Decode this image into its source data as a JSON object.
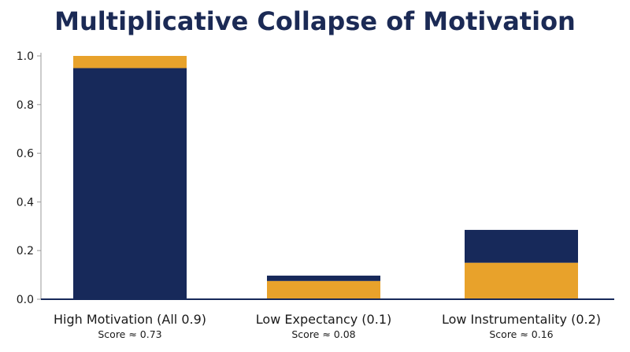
{
  "chart_data": {
    "type": "bar",
    "stacked": true,
    "title": "Multiplicative Collapse of Motivation",
    "xlabel": "",
    "ylabel": "",
    "ylim": [
      0,
      1.0
    ],
    "yticks": [
      "0.0",
      "0.2",
      "0.4",
      "0.6",
      "0.8",
      "1.0"
    ],
    "grid": false,
    "categories": [
      "High Motivation (All 0.9)",
      "Low Expectancy (0.1)",
      "Low Instrumentality (0.2)"
    ],
    "annotations": [
      "Score ≈ 0.73",
      "Score ≈ 0.08",
      "Score ≈ 0.16"
    ],
    "series": [
      {
        "color": "#e8a22b",
        "values": [
          0.05,
          0.075,
          0.15
        ]
      },
      {
        "color": "#17295a",
        "values": [
          0.95,
          0.022,
          0.135
        ]
      }
    ],
    "stack_order": [
      [
        1,
        0
      ],
      [
        0,
        1
      ],
      [
        0,
        1
      ]
    ]
  }
}
